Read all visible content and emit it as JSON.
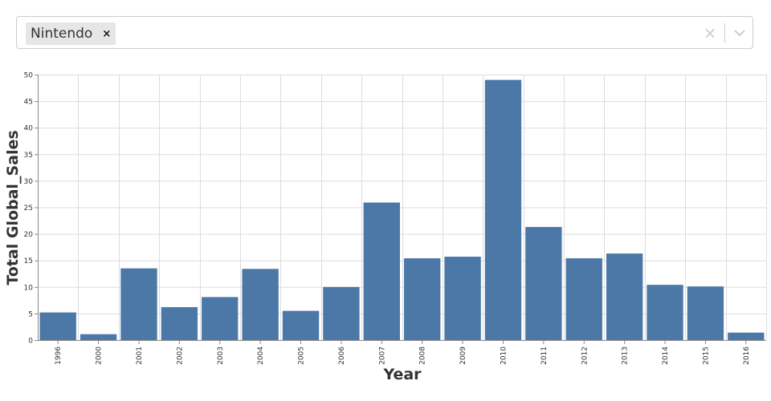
{
  "filter": {
    "selected_tag": "Nintendo",
    "remove_glyph": "×",
    "clear_glyph": "×",
    "icons": {
      "remove": "close-icon",
      "clear": "clear-icon",
      "dropdown": "chevron-down-icon"
    }
  },
  "chart_data": {
    "type": "bar",
    "categories": [
      "1996",
      "2000",
      "2001",
      "2002",
      "2003",
      "2004",
      "2005",
      "2006",
      "2007",
      "2008",
      "2009",
      "2010",
      "2011",
      "2012",
      "2013",
      "2014",
      "2015",
      "2016"
    ],
    "values": [
      5.2,
      1.1,
      13.5,
      6.2,
      8.1,
      13.4,
      5.5,
      10.0,
      25.9,
      15.4,
      15.7,
      49.0,
      21.3,
      15.4,
      16.3,
      10.4,
      10.1,
      1.4
    ],
    "xlabel": "Year",
    "ylabel": "Total Global_Sales",
    "ylim": [
      0,
      50
    ],
    "yticks": [
      0,
      5,
      10,
      15,
      20,
      25,
      30,
      35,
      40,
      45,
      50
    ],
    "grid": true,
    "bar_color": "#4c78a8",
    "grid_color": "#dddddd"
  }
}
